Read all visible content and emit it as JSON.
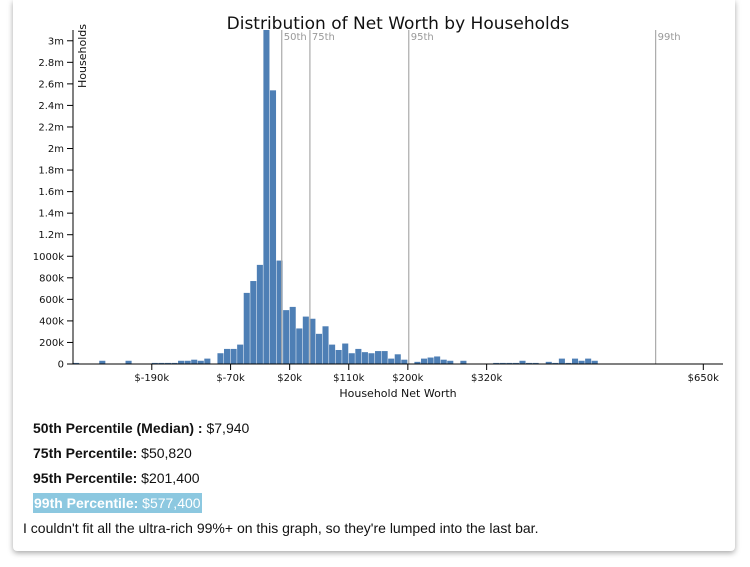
{
  "chart_data": {
    "type": "bar",
    "title": "Distribution of Net Worth by Households",
    "xlabel": "Household Net Worth",
    "ylabel": "Households",
    "ylim": [
      0,
      3100000
    ],
    "y_ticks": [
      {
        "value": 0,
        "label": "0"
      },
      {
        "value": 200000,
        "label": "200k"
      },
      {
        "value": 400000,
        "label": "400k"
      },
      {
        "value": 600000,
        "label": "600k"
      },
      {
        "value": 800000,
        "label": "800k"
      },
      {
        "value": 1000000,
        "label": "1000k"
      },
      {
        "value": 1200000,
        "label": "1.2m"
      },
      {
        "value": 1400000,
        "label": "1.4m"
      },
      {
        "value": 1600000,
        "label": "1.6m"
      },
      {
        "value": 1800000,
        "label": "1.8m"
      },
      {
        "value": 2000000,
        "label": "2m"
      },
      {
        "value": 2200000,
        "label": "2.2m"
      },
      {
        "value": 2400000,
        "label": "2.4m"
      },
      {
        "value": 2600000,
        "label": "2.6m"
      },
      {
        "value": 2800000,
        "label": "2.8m"
      },
      {
        "value": 3000000,
        "label": "3m"
      }
    ],
    "x_range": [
      -310000,
      680000
    ],
    "x_ticks": [
      {
        "value": -190000,
        "label": "$-190k"
      },
      {
        "value": -70000,
        "label": "$-70k"
      },
      {
        "value": 20000,
        "label": "$20k"
      },
      {
        "value": 110000,
        "label": "$110k"
      },
      {
        "value": 200000,
        "label": "$200k"
      },
      {
        "value": 320000,
        "label": "$320k"
      },
      {
        "value": 650000,
        "label": "$650k"
      }
    ],
    "bin_start": -310000,
    "bin_width": 10000,
    "values": [
      10000,
      0,
      0,
      0,
      30000,
      0,
      0,
      0,
      30000,
      0,
      0,
      0,
      10000,
      10000,
      10000,
      10000,
      30000,
      30000,
      40000,
      30000,
      50000,
      0,
      100000,
      140000,
      140000,
      180000,
      660000,
      770000,
      920000,
      3100000,
      2540000,
      960000,
      500000,
      530000,
      330000,
      440000,
      420000,
      280000,
      350000,
      180000,
      130000,
      190000,
      100000,
      140000,
      110000,
      100000,
      120000,
      120000,
      50000,
      90000,
      40000,
      0,
      20000,
      50000,
      60000,
      70000,
      40000,
      30000,
      0,
      30000,
      0,
      0,
      0,
      0,
      10000,
      10000,
      10000,
      10000,
      30000,
      10000,
      10000,
      0,
      20000,
      10000,
      50000,
      10000,
      50000,
      30000,
      50000,
      30000
    ],
    "percentiles": [
      {
        "label": "50th",
        "value": 7940
      },
      {
        "label": "75th",
        "value": 50820
      },
      {
        "label": "95th",
        "value": 201400
      },
      {
        "label": "99th",
        "value": 577400
      }
    ],
    "bar_color": "#4e7fb5",
    "percentile_line_color": "#aaaaaa"
  },
  "stats": [
    {
      "key": "50th Percentile (Median) :",
      "value": "$7,940"
    },
    {
      "key": "75th Percentile:",
      "value": "$50,820"
    },
    {
      "key": "95th Percentile:",
      "value": "$201,400"
    },
    {
      "key": "99th Percentile:",
      "value": "$577,400"
    }
  ],
  "highlight_color": "#8cc8e0",
  "note": "I couldn't fit all the ultra-rich 99%+ on this graph, so they're lumped into the last bar."
}
